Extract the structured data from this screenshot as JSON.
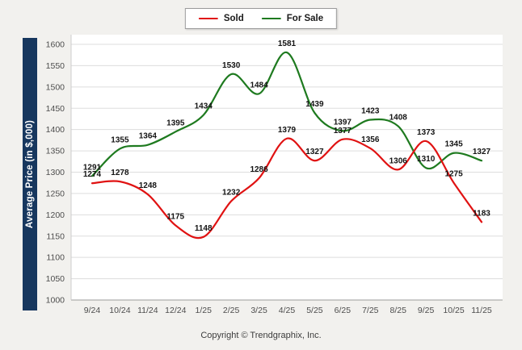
{
  "chart": {
    "ylabel": "Average Price (in $,000)",
    "copyright": "Copyright © Trendgraphix, Inc.",
    "colors": {
      "axis_label_bg": "#17375e",
      "plot_bg": "#ffffff",
      "page_bg": "#f2f1ee",
      "grid": "#dddddd",
      "axis_line": "#9b9b9b"
    }
  },
  "legend": [
    {
      "label": "Sold",
      "color": "#e01212"
    },
    {
      "label": "For Sale",
      "color": "#1e7a1f"
    }
  ],
  "chart_data": {
    "type": "line",
    "categories": [
      "9/24",
      "10/24",
      "11/24",
      "12/24",
      "1/25",
      "2/25",
      "3/25",
      "4/25",
      "5/25",
      "6/25",
      "7/25",
      "8/25",
      "9/25",
      "10/25",
      "11/25"
    ],
    "series": [
      {
        "name": "Sold",
        "color": "#e01212",
        "values": [
          1274,
          1278,
          1248,
          1175,
          1148,
          1232,
          1286,
          1379,
          1327,
          1377,
          1356,
          1306,
          1373,
          1275,
          1183
        ]
      },
      {
        "name": "For Sale",
        "color": "#1e7a1f",
        "values": [
          1291,
          1355,
          1364,
          1395,
          1434,
          1530,
          1484,
          1581,
          1439,
          1397,
          1423,
          1408,
          1310,
          1345,
          1327
        ]
      }
    ],
    "ylim": [
      1000,
      1600
    ],
    "ytick_step": 50,
    "grid": true,
    "legend_position": "top"
  }
}
